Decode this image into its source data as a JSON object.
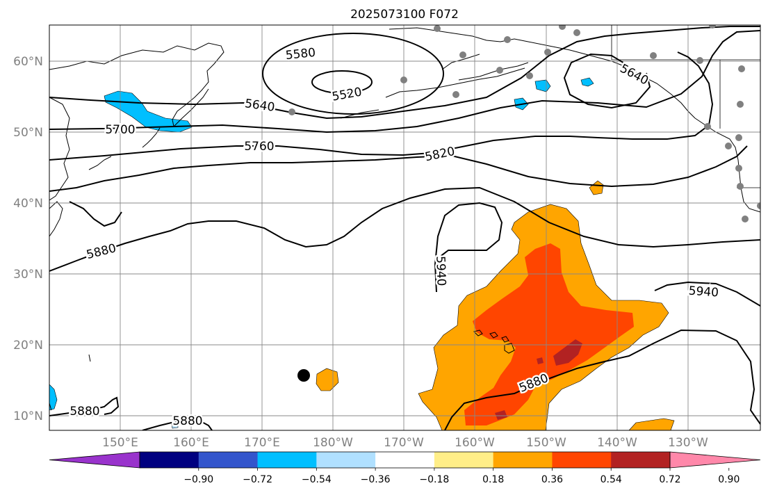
{
  "title": "2025073100 F072",
  "map": {
    "lon_ticks": [
      "150°E",
      "160°E",
      "170°E",
      "180°W",
      "170°W",
      "160°W",
      "150°W",
      "140°W",
      "130°W"
    ],
    "lat_ticks": [
      "60°N",
      "50°N",
      "40°N",
      "30°N",
      "20°N",
      "10°N"
    ],
    "grid": true,
    "contour_labels": [
      "5580",
      "5520",
      "5640",
      "5640",
      "5700",
      "5760",
      "5820",
      "5880",
      "5940",
      "5940",
      "5880",
      "5880",
      "5880"
    ]
  },
  "colorbar": {
    "tick_labels": [
      "−0.90",
      "−0.72",
      "−0.54",
      "−0.36",
      "−0.18",
      "0.18",
      "0.36",
      "0.54",
      "0.72",
      "0.90"
    ],
    "colors": [
      "#9933cc",
      "#000080",
      "#3355cc",
      "#00bfff",
      "#b0e0ff",
      "#ffffff",
      "#ffee88",
      "#ffa500",
      "#ff4500",
      "#b22222",
      "#ff88aa"
    ],
    "extend": "both"
  }
}
